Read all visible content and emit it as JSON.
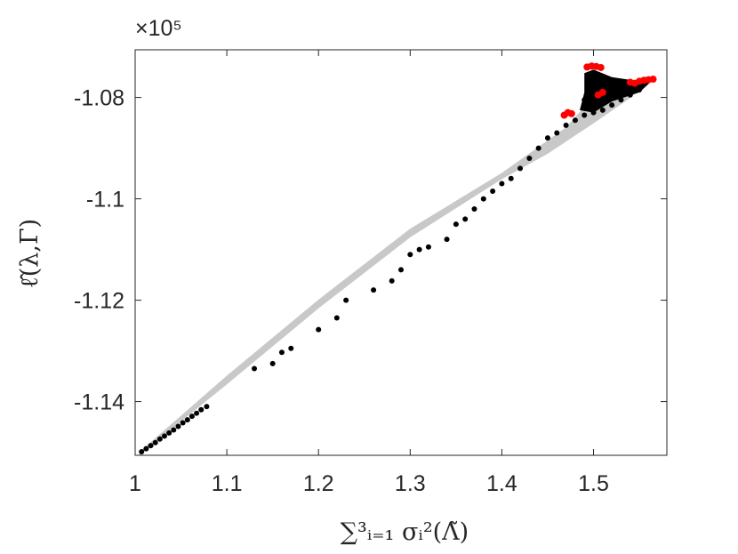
{
  "chart_data": {
    "type": "scatter",
    "title": "",
    "xlabel": "∑³ᵢ₌₁ σᵢ²(Λ̃)",
    "ylabel": "ℓ̂(λ,Γ)",
    "y_exponent_label": "×10⁵",
    "xlim": [
      1.0,
      1.58
    ],
    "ylim": [
      -1.1506,
      -1.0706
    ],
    "x_ticks": [
      1,
      1.1,
      1.2,
      1.3,
      1.4,
      1.5
    ],
    "x_tick_labels": [
      "1",
      "1.1",
      "1.2",
      "1.3",
      "1.4",
      "1.5"
    ],
    "y_ticks": [
      -1.14,
      -1.12,
      -1.1,
      -1.08
    ],
    "y_tick_labels": [
      "-1.14",
      "-1.12",
      "-1.1",
      "-1.08"
    ],
    "grid": false,
    "legend": "none",
    "colors": {
      "envelope": "#c8c8c8",
      "black_points": "#000000",
      "red_points": "#ff0000",
      "axes": "#262626"
    },
    "envelope": {
      "upper": [
        [
          1.005,
          -1.15
        ],
        [
          1.1,
          -1.135
        ],
        [
          1.2,
          -1.12
        ],
        [
          1.3,
          -1.106
        ],
        [
          1.4,
          -1.095
        ],
        [
          1.47,
          -1.086
        ],
        [
          1.5,
          -1.08
        ],
        [
          1.55,
          -1.0772
        ],
        [
          1.56,
          -1.0766
        ]
      ],
      "lower": [
        [
          1.56,
          -1.0766
        ],
        [
          1.54,
          -1.08
        ],
        [
          1.5,
          -1.085
        ],
        [
          1.45,
          -1.091
        ],
        [
          1.4,
          -1.096
        ],
        [
          1.3,
          -1.1075
        ],
        [
          1.2,
          -1.1215
        ],
        [
          1.1,
          -1.1365
        ],
        [
          1.005,
          -1.1504
        ]
      ]
    },
    "series": [
      {
        "color": "black",
        "points": [
          [
            1.007,
            -1.1499
          ],
          [
            1.012,
            -1.1493
          ],
          [
            1.017,
            -1.1487
          ],
          [
            1.022,
            -1.1481
          ],
          [
            1.027,
            -1.1474
          ],
          [
            1.032,
            -1.1468
          ],
          [
            1.037,
            -1.1462
          ],
          [
            1.042,
            -1.1456
          ],
          [
            1.047,
            -1.1449
          ],
          [
            1.052,
            -1.1442
          ],
          [
            1.057,
            -1.1436
          ],
          [
            1.062,
            -1.1429
          ],
          [
            1.067,
            -1.1423
          ],
          [
            1.072,
            -1.1416
          ],
          [
            1.078,
            -1.141
          ],
          [
            1.13,
            -1.1335
          ],
          [
            1.15,
            -1.1325
          ],
          [
            1.16,
            -1.1303
          ],
          [
            1.17,
            -1.1295
          ],
          [
            1.2,
            -1.1258
          ],
          [
            1.22,
            -1.1235
          ],
          [
            1.23,
            -1.12
          ],
          [
            1.26,
            -1.118
          ],
          [
            1.28,
            -1.1162
          ],
          [
            1.29,
            -1.114
          ],
          [
            1.3,
            -1.111
          ],
          [
            1.31,
            -1.11
          ],
          [
            1.32,
            -1.1095
          ],
          [
            1.34,
            -1.108
          ],
          [
            1.35,
            -1.105
          ],
          [
            1.36,
            -1.104
          ],
          [
            1.37,
            -1.102
          ],
          [
            1.38,
            -1.1
          ],
          [
            1.39,
            -1.0985
          ],
          [
            1.4,
            -1.097
          ],
          [
            1.41,
            -1.096
          ],
          [
            1.42,
            -1.094
          ],
          [
            1.43,
            -1.092
          ],
          [
            1.44,
            -1.09
          ],
          [
            1.45,
            -1.088
          ],
          [
            1.46,
            -1.087
          ],
          [
            1.47,
            -1.0855
          ],
          [
            1.48,
            -1.0845
          ],
          [
            1.49,
            -1.0835
          ],
          [
            1.5,
            -1.083
          ],
          [
            1.51,
            -1.0825
          ],
          [
            1.52,
            -1.0815
          ],
          [
            1.53,
            -1.0805
          ],
          [
            1.54,
            -1.0795
          ],
          [
            1.55,
            -1.0785
          ],
          [
            1.495,
            -1.077
          ],
          [
            1.5,
            -1.076
          ],
          [
            1.505,
            -1.079
          ],
          [
            1.515,
            -1.08
          ],
          [
            1.525,
            -1.079
          ],
          [
            1.49,
            -1.0805
          ],
          [
            1.5,
            -1.0815
          ],
          [
            1.51,
            -1.081
          ],
          [
            1.52,
            -1.08
          ],
          [
            1.53,
            -1.079
          ]
        ]
      },
      {
        "color": "red",
        "points": [
          [
            1.493,
            -1.074
          ],
          [
            1.498,
            -1.0738
          ],
          [
            1.503,
            -1.0739
          ],
          [
            1.508,
            -1.0741
          ],
          [
            1.468,
            -1.0835
          ],
          [
            1.472,
            -1.083
          ],
          [
            1.476,
            -1.0832
          ],
          [
            1.505,
            -1.0795
          ],
          [
            1.51,
            -1.079
          ],
          [
            1.54,
            -1.077
          ],
          [
            1.545,
            -1.0772
          ],
          [
            1.55,
            -1.0768
          ],
          [
            1.555,
            -1.0766
          ],
          [
            1.56,
            -1.0765
          ],
          [
            1.565,
            -1.0764
          ]
        ]
      }
    ]
  }
}
